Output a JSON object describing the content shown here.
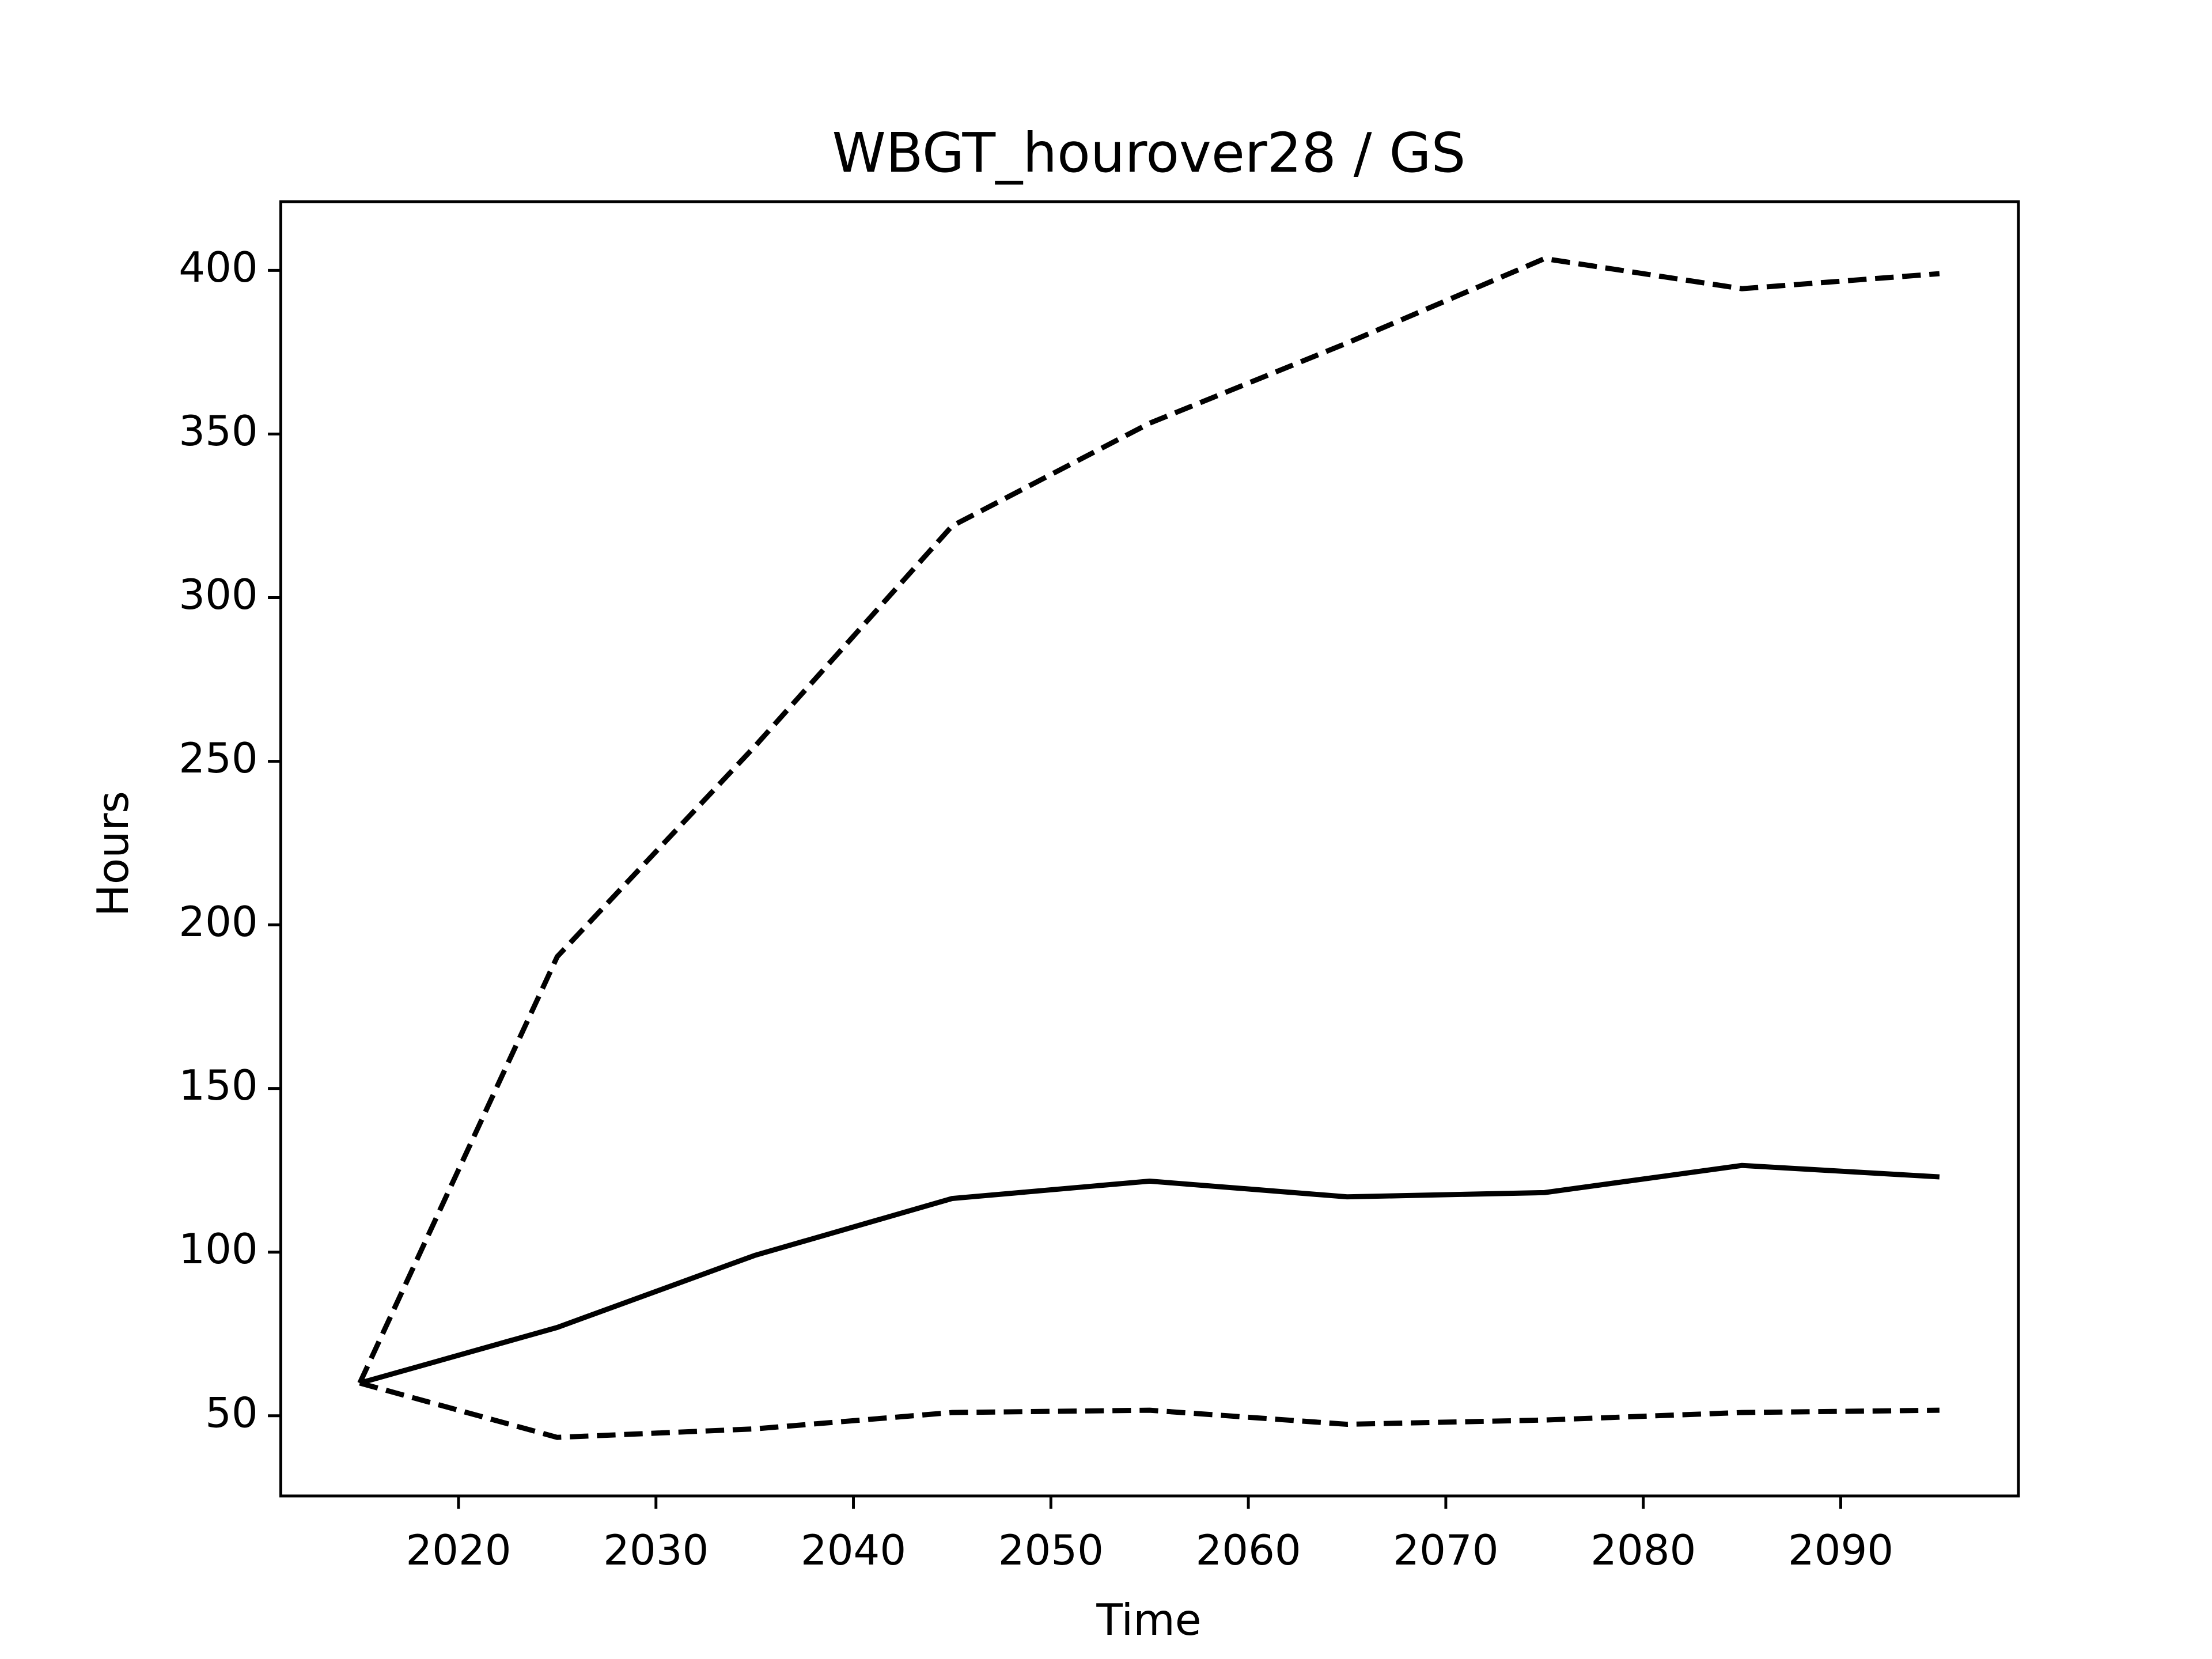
{
  "chart_data": {
    "type": "line",
    "title": "WBGT_hourover28 / GS",
    "x_label": "Time",
    "y_label": "Hours",
    "x": [
      2015,
      2025,
      2035,
      2045,
      2055,
      2065,
      2075,
      2085,
      2095
    ],
    "series": [
      {
        "color": "#000000",
        "dashed": true,
        "values": [
          60,
          190.3,
          254.5,
          321.9,
          353.3,
          377.8,
          403.6,
          394.4,
          399
        ]
      },
      {
        "color": "#000000",
        "dashed": false,
        "values": [
          60,
          77,
          99,
          116.4,
          121.7,
          116.9,
          118.2,
          126.5,
          123
        ]
      },
      {
        "color": "#000000",
        "dashed": true,
        "values": [
          60,
          43.4,
          46,
          51,
          51.7,
          47.4,
          48.7,
          51,
          51.7
        ]
      }
    ],
    "xlim": [
      2011,
      2099
    ],
    "xticks": [
      2020,
      2030,
      2040,
      2050,
      2060,
      2070,
      2080,
      2090
    ],
    "ylim": [
      25.5,
      421
    ],
    "yticks": [
      50,
      100,
      150,
      200,
      250,
      300,
      350,
      400
    ],
    "grid": false
  }
}
